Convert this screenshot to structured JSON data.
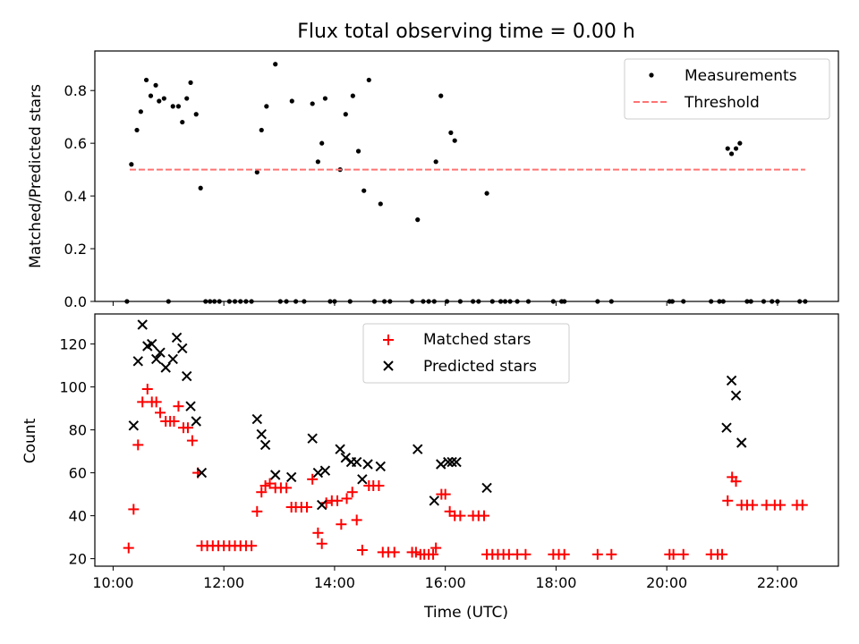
{
  "chart_data": [
    {
      "type": "scatter",
      "title": "Flux total observing time = 0.00 h",
      "xlabel": "",
      "ylabel": "Matched/Predicted stars",
      "xlim": [
        9.67,
        23.1
      ],
      "ylim": [
        0.0,
        0.95
      ],
      "x_tick_values": [
        10,
        12,
        14,
        16,
        18,
        20,
        22
      ],
      "y_tick_values": [
        0.0,
        0.2,
        0.4,
        0.6,
        0.8
      ],
      "y_tick_labels": [
        "0.0",
        "0.2",
        "0.4",
        "0.6",
        "0.8"
      ],
      "legend_position": "top-right",
      "grid": false,
      "series": [
        {
          "name": "Measurements",
          "marker": "dot",
          "color": "#000000",
          "points": [
            [
              10.25,
              0.0
            ],
            [
              10.33,
              0.52
            ],
            [
              10.43,
              0.65
            ],
            [
              10.5,
              0.72
            ],
            [
              10.6,
              0.84
            ],
            [
              10.68,
              0.78
            ],
            [
              10.77,
              0.82
            ],
            [
              10.83,
              0.76
            ],
            [
              10.92,
              0.77
            ],
            [
              11.0,
              0.0
            ],
            [
              11.08,
              0.74
            ],
            [
              11.18,
              0.74
            ],
            [
              11.25,
              0.68
            ],
            [
              11.33,
              0.77
            ],
            [
              11.4,
              0.83
            ],
            [
              11.5,
              0.71
            ],
            [
              11.58,
              0.43
            ],
            [
              11.67,
              0.0
            ],
            [
              11.75,
              0.0
            ],
            [
              11.83,
              0.0
            ],
            [
              11.92,
              0.0
            ],
            [
              12.1,
              0.0
            ],
            [
              12.2,
              0.0
            ],
            [
              12.3,
              0.0
            ],
            [
              12.4,
              0.0
            ],
            [
              12.5,
              0.0
            ],
            [
              12.6,
              0.49
            ],
            [
              12.68,
              0.65
            ],
            [
              12.77,
              0.74
            ],
            [
              12.93,
              0.9
            ],
            [
              13.02,
              0.0
            ],
            [
              13.13,
              0.0
            ],
            [
              13.23,
              0.76
            ],
            [
              13.3,
              0.0
            ],
            [
              13.45,
              0.0
            ],
            [
              13.6,
              0.75
            ],
            [
              13.7,
              0.53
            ],
            [
              13.77,
              0.6
            ],
            [
              13.83,
              0.77
            ],
            [
              13.92,
              0.0
            ],
            [
              14.0,
              0.0
            ],
            [
              14.1,
              0.5
            ],
            [
              14.2,
              0.71
            ],
            [
              14.28,
              0.0
            ],
            [
              14.33,
              0.78
            ],
            [
              14.43,
              0.57
            ],
            [
              14.53,
              0.42
            ],
            [
              14.62,
              0.84
            ],
            [
              14.72,
              0.0
            ],
            [
              14.83,
              0.37
            ],
            [
              14.9,
              0.0
            ],
            [
              15.0,
              0.0
            ],
            [
              15.4,
              0.0
            ],
            [
              15.5,
              0.31
            ],
            [
              15.6,
              0.0
            ],
            [
              15.7,
              0.0
            ],
            [
              15.8,
              0.0
            ],
            [
              15.83,
              0.53
            ],
            [
              15.92,
              0.78
            ],
            [
              16.03,
              0.0
            ],
            [
              16.1,
              0.64
            ],
            [
              16.17,
              0.61
            ],
            [
              16.27,
              0.0
            ],
            [
              16.5,
              0.0
            ],
            [
              16.6,
              0.0
            ],
            [
              16.75,
              0.41
            ],
            [
              16.85,
              0.0
            ],
            [
              17.0,
              0.0
            ],
            [
              17.08,
              0.0
            ],
            [
              17.17,
              0.0
            ],
            [
              17.3,
              0.0
            ],
            [
              17.5,
              0.0
            ],
            [
              17.95,
              0.0
            ],
            [
              18.1,
              0.0
            ],
            [
              18.15,
              0.0
            ],
            [
              18.75,
              0.0
            ],
            [
              19.0,
              0.0
            ],
            [
              20.05,
              0.0
            ],
            [
              20.1,
              0.0
            ],
            [
              20.3,
              0.0
            ],
            [
              20.8,
              0.0
            ],
            [
              20.95,
              0.0
            ],
            [
              21.02,
              0.0
            ],
            [
              21.1,
              0.58
            ],
            [
              21.17,
              0.56
            ],
            [
              21.25,
              0.58
            ],
            [
              21.32,
              0.6
            ],
            [
              21.45,
              0.0
            ],
            [
              21.52,
              0.0
            ],
            [
              21.75,
              0.0
            ],
            [
              21.9,
              0.0
            ],
            [
              22.0,
              0.0
            ],
            [
              22.4,
              0.0
            ],
            [
              22.5,
              0.0
            ]
          ]
        },
        {
          "name": "Threshold",
          "style": "dashed",
          "color": "#ff7373",
          "x": [
            10.3,
            22.5
          ],
          "y": [
            0.5,
            0.5
          ]
        }
      ]
    },
    {
      "type": "scatter",
      "title": "",
      "xlabel": "Time (UTC)",
      "ylabel": "Count",
      "xlim": [
        9.67,
        23.1
      ],
      "ylim": [
        16.5,
        134
      ],
      "x_tick_values": [
        10,
        12,
        14,
        16,
        18,
        20,
        22
      ],
      "x_tick_labels": [
        "10:00",
        "12:00",
        "14:00",
        "16:00",
        "18:00",
        "20:00",
        "22:00"
      ],
      "y_tick_values": [
        20,
        40,
        60,
        80,
        100,
        120
      ],
      "y_tick_labels": [
        "20",
        "40",
        "60",
        "80",
        "100",
        "120"
      ],
      "legend_position": "top-center",
      "grid": false,
      "series": [
        {
          "name": "Matched stars",
          "marker": "plus",
          "color": "#ff0000",
          "points": [
            [
              10.28,
              25
            ],
            [
              10.37,
              43
            ],
            [
              10.45,
              73
            ],
            [
              10.53,
              93
            ],
            [
              10.62,
              99
            ],
            [
              10.7,
              93
            ],
            [
              10.78,
              93
            ],
            [
              10.85,
              88
            ],
            [
              10.95,
              84
            ],
            [
              11.03,
              84
            ],
            [
              11.1,
              84
            ],
            [
              11.18,
              91
            ],
            [
              11.27,
              81
            ],
            [
              11.35,
              81
            ],
            [
              11.43,
              75
            ],
            [
              11.53,
              60
            ],
            [
              11.6,
              26
            ],
            [
              11.7,
              26
            ],
            [
              11.8,
              26
            ],
            [
              11.9,
              26
            ],
            [
              12.0,
              26
            ],
            [
              12.1,
              26
            ],
            [
              12.2,
              26
            ],
            [
              12.3,
              26
            ],
            [
              12.4,
              26
            ],
            [
              12.5,
              26
            ],
            [
              12.6,
              42
            ],
            [
              12.68,
              51
            ],
            [
              12.75,
              54
            ],
            [
              12.83,
              55
            ],
            [
              12.93,
              53
            ],
            [
              13.03,
              53
            ],
            [
              13.13,
              53
            ],
            [
              13.22,
              44
            ],
            [
              13.3,
              44
            ],
            [
              13.4,
              44
            ],
            [
              13.5,
              44
            ],
            [
              13.6,
              57
            ],
            [
              13.7,
              32
            ],
            [
              13.77,
              27
            ],
            [
              13.85,
              46
            ],
            [
              13.95,
              47
            ],
            [
              14.05,
              47
            ],
            [
              14.12,
              36
            ],
            [
              14.22,
              48
            ],
            [
              14.32,
              51
            ],
            [
              14.4,
              38
            ],
            [
              14.5,
              24
            ],
            [
              14.62,
              54
            ],
            [
              14.7,
              54
            ],
            [
              14.8,
              54
            ],
            [
              14.87,
              23
            ],
            [
              14.97,
              23
            ],
            [
              15.08,
              23
            ],
            [
              15.4,
              23
            ],
            [
              15.47,
              23
            ],
            [
              15.55,
              22
            ],
            [
              15.62,
              22
            ],
            [
              15.7,
              22
            ],
            [
              15.78,
              22
            ],
            [
              15.83,
              25
            ],
            [
              15.93,
              50
            ],
            [
              16.0,
              50
            ],
            [
              16.08,
              42
            ],
            [
              16.17,
              40
            ],
            [
              16.27,
              40
            ],
            [
              16.5,
              40
            ],
            [
              16.6,
              40
            ],
            [
              16.7,
              40
            ],
            [
              16.75,
              22
            ],
            [
              16.85,
              22
            ],
            [
              16.95,
              22
            ],
            [
              17.05,
              22
            ],
            [
              17.15,
              22
            ],
            [
              17.3,
              22
            ],
            [
              17.45,
              22
            ],
            [
              17.95,
              22
            ],
            [
              18.05,
              22
            ],
            [
              18.15,
              22
            ],
            [
              18.75,
              22
            ],
            [
              19.0,
              22
            ],
            [
              20.05,
              22
            ],
            [
              20.12,
              22
            ],
            [
              20.3,
              22
            ],
            [
              20.8,
              22
            ],
            [
              20.92,
              22
            ],
            [
              21.0,
              22
            ],
            [
              21.1,
              47
            ],
            [
              21.18,
              58
            ],
            [
              21.25,
              56
            ],
            [
              21.35,
              45
            ],
            [
              21.45,
              45
            ],
            [
              21.55,
              45
            ],
            [
              21.8,
              45
            ],
            [
              21.95,
              45
            ],
            [
              22.05,
              45
            ],
            [
              22.35,
              45
            ],
            [
              22.45,
              45
            ]
          ]
        },
        {
          "name": "Predicted stars",
          "marker": "x",
          "color": "#000000",
          "points": [
            [
              10.37,
              82
            ],
            [
              10.45,
              112
            ],
            [
              10.53,
              129
            ],
            [
              10.62,
              119
            ],
            [
              10.7,
              120
            ],
            [
              10.78,
              113
            ],
            [
              10.85,
              116
            ],
            [
              10.95,
              109
            ],
            [
              11.08,
              113
            ],
            [
              11.15,
              123
            ],
            [
              11.25,
              118
            ],
            [
              11.33,
              105
            ],
            [
              11.4,
              91
            ],
            [
              11.5,
              84
            ],
            [
              11.6,
              60
            ],
            [
              12.6,
              85
            ],
            [
              12.68,
              78
            ],
            [
              12.75,
              73
            ],
            [
              12.93,
              59
            ],
            [
              13.22,
              58
            ],
            [
              13.6,
              76
            ],
            [
              13.7,
              60
            ],
            [
              13.77,
              45
            ],
            [
              13.83,
              61
            ],
            [
              14.1,
              71
            ],
            [
              14.2,
              67
            ],
            [
              14.3,
              65
            ],
            [
              14.4,
              65
            ],
            [
              14.5,
              57
            ],
            [
              14.6,
              64
            ],
            [
              14.83,
              63
            ],
            [
              15.5,
              71
            ],
            [
              15.8,
              47
            ],
            [
              15.92,
              64
            ],
            [
              16.05,
              65
            ],
            [
              16.12,
              65
            ],
            [
              16.2,
              65
            ],
            [
              16.75,
              53
            ],
            [
              21.08,
              81
            ],
            [
              21.17,
              103
            ],
            [
              21.25,
              96
            ],
            [
              21.35,
              74
            ]
          ]
        }
      ]
    }
  ]
}
